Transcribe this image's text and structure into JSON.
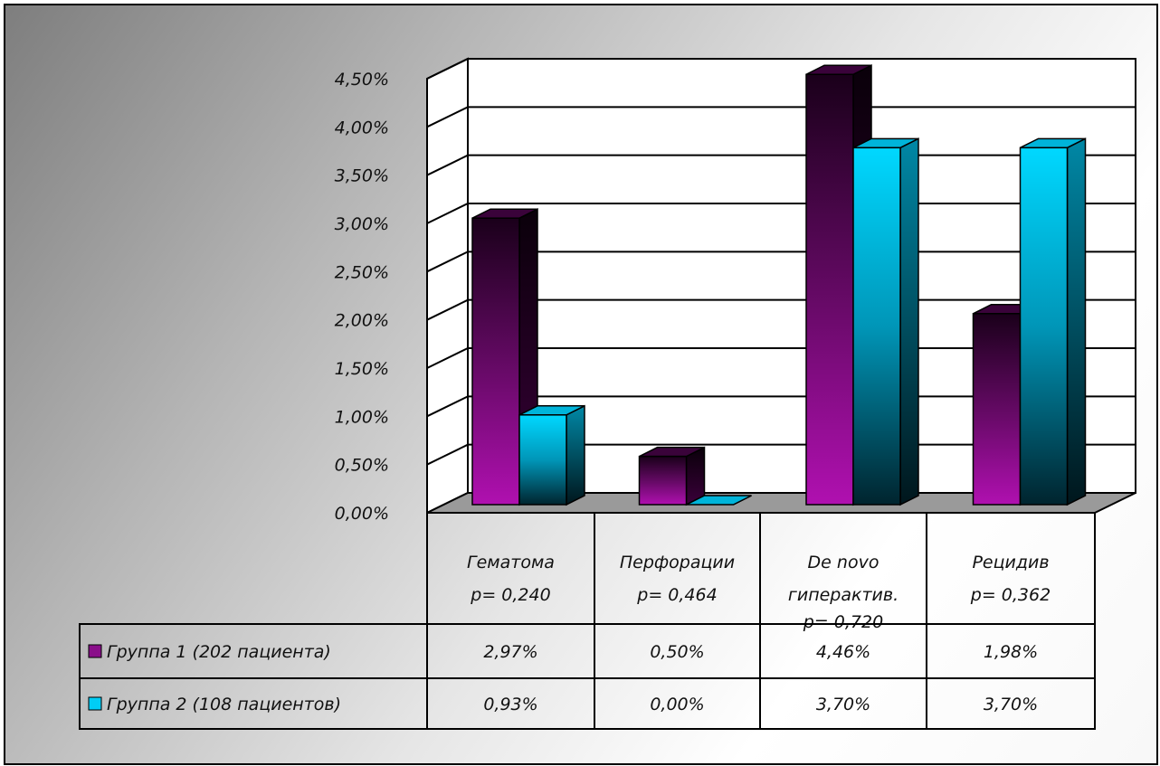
{
  "chart_data": {
    "type": "bar",
    "title": "",
    "xlabel": "",
    "ylabel": "",
    "ylim": [
      0,
      4.5
    ],
    "y_ticks": [
      "0,00%",
      "0,50%",
      "1,00%",
      "1,50%",
      "2,00%",
      "2,50%",
      "3,00%",
      "3,50%",
      "4,00%",
      "4,50%"
    ],
    "y_tick_values": [
      0,
      0.5,
      1.0,
      1.5,
      2.0,
      2.5,
      3.0,
      3.5,
      4.0,
      4.5
    ],
    "grid": true,
    "three_d": true,
    "legend_placement": "data-table",
    "categories": [
      {
        "label_line1": "Гематома",
        "label_line2": "p= 0,240",
        "label_line3": ""
      },
      {
        "label_line1": "Перфорации",
        "label_line2": "p= 0,464",
        "label_line3": ""
      },
      {
        "label_line1": "De novo",
        "label_line2": "гиперактив.",
        "label_line3": "p= 0,720"
      },
      {
        "label_line1": "Рецидив",
        "label_line2": "p= 0,362",
        "label_line3": ""
      }
    ],
    "series": [
      {
        "name": "Группа 1 (202 пациента)",
        "color": "#8a0f8a",
        "values": [
          2.97,
          0.5,
          4.46,
          1.98
        ],
        "value_labels": [
          "2,97%",
          "0,50%",
          "4,46%",
          "1,98%"
        ]
      },
      {
        "name": "Группа 2 (108 пациентов)",
        "color": "#00cdf5",
        "values": [
          0.93,
          0.0,
          3.7,
          3.7
        ],
        "value_labels": [
          "0,93%",
          "0,00%",
          "3,70%",
          "3,70%"
        ]
      }
    ]
  }
}
